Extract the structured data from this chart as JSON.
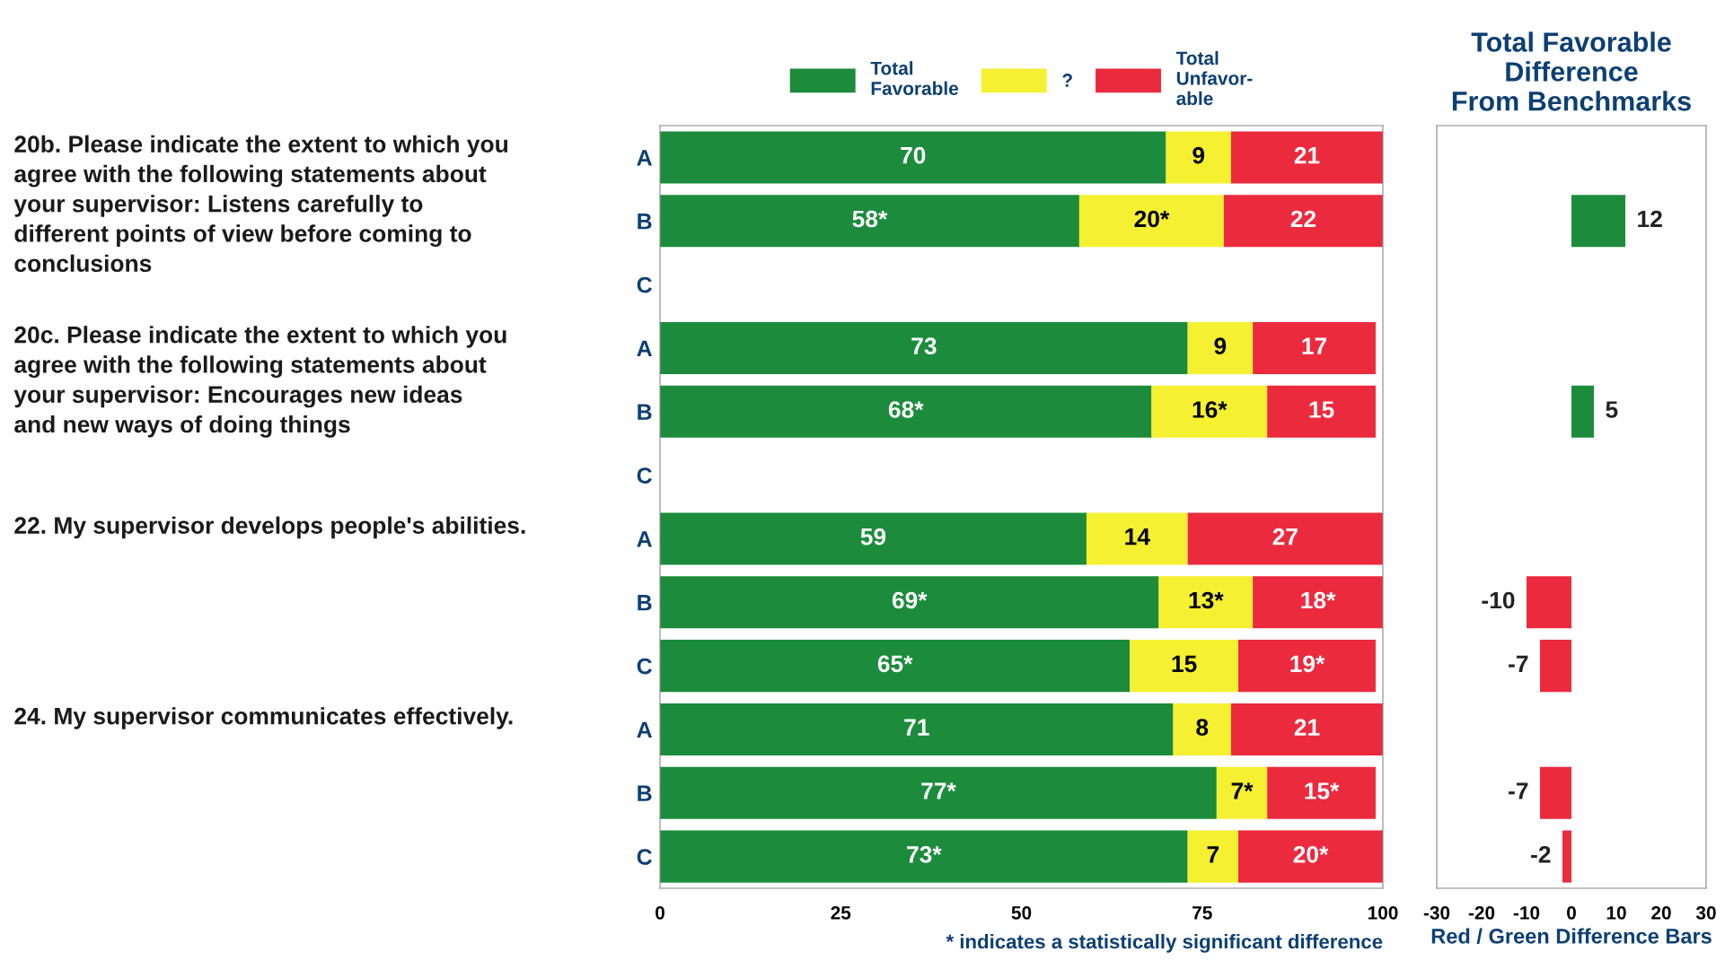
{
  "chart_data": [
    {
      "type": "bar",
      "orientation": "horizontal",
      "stacked": true,
      "categories": [
        "A",
        "B",
        "C",
        "A",
        "B",
        "C",
        "A",
        "B",
        "C",
        "A",
        "B",
        "C"
      ],
      "series": [
        {
          "name": "Total\nFavorable",
          "color": "#1c8c3c",
          "values": [
            70,
            58,
            null,
            73,
            68,
            null,
            59,
            69,
            65,
            71,
            77,
            73
          ],
          "value_labels": [
            "70",
            "58*",
            null,
            "73",
            "68*",
            null,
            "59",
            "69*",
            "65*",
            "71",
            "77*",
            "73*"
          ]
        },
        {
          "name": "?",
          "color": "#f5f032",
          "values": [
            9,
            20,
            null,
            9,
            16,
            null,
            14,
            13,
            15,
            8,
            7,
            7
          ],
          "value_labels": [
            "9",
            "20*",
            null,
            "9",
            "16*",
            null,
            "14",
            "13*",
            "15",
            "8",
            "7*",
            "7"
          ]
        },
        {
          "name": "Total\nUnfavor-\nable",
          "color": "#ec2a3e",
          "values": [
            21,
            22,
            null,
            17,
            15,
            null,
            27,
            18,
            19,
            21,
            15,
            20
          ],
          "value_labels": [
            "21",
            "22",
            null,
            "17",
            "15",
            null,
            "27",
            "18*",
            "19*",
            "21",
            "15*",
            "20*"
          ]
        }
      ],
      "xlim": [
        0,
        100
      ],
      "xticks": [
        0,
        25,
        50,
        75,
        100
      ],
      "grid": false,
      "legend": "top",
      "annotations": [
        "20b. Please indicate the extent to which you\nagree with the following statements about\nyour supervisor: Listens carefully to\ndifferent points of view before coming to\nconclusions",
        "20c. Please indicate the extent to which you\nagree with the following statements about\nyour supervisor: Encourages new ideas\nand new ways of doing things",
        "22. My supervisor develops people's abilities.",
        "24. My supervisor communicates effectively.",
        "* indicates a statistically significant difference"
      ]
    },
    {
      "type": "bar",
      "orientation": "horizontal",
      "title": "Total Favorable\nDifference\nFrom Benchmarks",
      "xlabel": "Red / Green Difference Bars",
      "categories": [
        null,
        null,
        null,
        null,
        null,
        null,
        null,
        null,
        null,
        null,
        null,
        null
      ],
      "values": [
        null,
        12,
        null,
        null,
        5,
        null,
        null,
        -10,
        -7,
        null,
        -7,
        -2
      ],
      "colors": [
        null,
        "#1c8c3c",
        null,
        null,
        "#1c8c3c",
        null,
        null,
        "#ec2a3e",
        "#ec2a3e",
        null,
        "#ec2a3e",
        "#ec2a3e"
      ],
      "data_labels": true,
      "xlim": [
        -30,
        30
      ],
      "xticks": [
        -30,
        -20,
        -10,
        0,
        10,
        20,
        30
      ],
      "grid": false,
      "tick_labels": "x"
    }
  ]
}
